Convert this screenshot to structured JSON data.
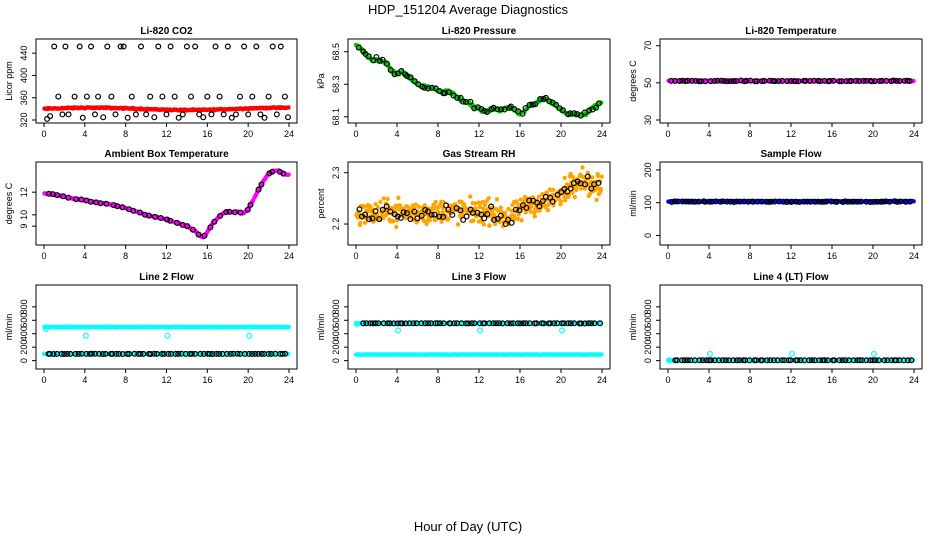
{
  "figure": {
    "title": "HDP_151204  Average Diagnostics",
    "xlabel": "Hour of Day (UTC)"
  },
  "chart_data": [
    {
      "type": "scatter",
      "title": "Li-820 CO2",
      "ylabel": "Licor ppm",
      "xlim": [
        0,
        24
      ],
      "ylim": [
        320,
        460
      ],
      "xticks": [
        0,
        4,
        8,
        12,
        16,
        20,
        24
      ],
      "yticks": [
        320,
        360,
        400,
        440
      ],
      "series": [
        {
          "name": "co2_mean",
          "color": "#ff0000",
          "marker": "dot",
          "x_range": [
            0,
            24
          ],
          "n": 240,
          "y_base": 340,
          "y_amp": 2,
          "noise": 1.5
        },
        {
          "name": "co2_hourly",
          "color": "#000000",
          "marker": "circle",
          "x": [
            0.3,
            0.6,
            1,
            1.4,
            1.8,
            2.1,
            2.4,
            3,
            3.5,
            3.8,
            4.2,
            4.6,
            5,
            5.3,
            5.8,
            6.2,
            6.6,
            7,
            7.5,
            7.8,
            8.2,
            8.6,
            9,
            9.5,
            10,
            10.4,
            10.8,
            11.2,
            11.6,
            12,
            12.4,
            12.8,
            13.2,
            13.6,
            14,
            14.4,
            14.8,
            15.2,
            15.6,
            16,
            16.4,
            16.8,
            17.2,
            17.6,
            18,
            18.4,
            18.8,
            19.2,
            19.6,
            20,
            20.4,
            20.8,
            21.2,
            21.6,
            22,
            22.4,
            22.8,
            23.2,
            23.6,
            23.9
          ],
          "y": [
            322,
            327,
            452,
            362,
            330,
            452,
            330,
            362,
            452,
            324,
            362,
            452,
            330,
            362,
            325,
            452,
            362,
            330,
            452,
            452,
            324,
            362,
            330,
            452,
            330,
            362,
            325,
            452,
            362,
            330,
            452,
            362,
            324,
            330,
            452,
            362,
            452,
            330,
            325,
            362,
            330,
            452,
            362,
            330,
            452,
            324,
            330,
            362,
            452,
            330,
            362,
            452,
            330,
            324,
            362,
            452,
            330,
            452,
            362,
            325
          ]
        }
      ]
    },
    {
      "type": "scatter",
      "title": "Li-820 Pressure",
      "ylabel": "kPa",
      "xlim": [
        0,
        24
      ],
      "ylim": [
        68.08,
        68.56
      ],
      "xticks": [
        0,
        4,
        8,
        12,
        16,
        20,
        24
      ],
      "yticks": [
        68.1,
        68.3,
        68.5
      ],
      "series": [
        {
          "name": "pressure_mean",
          "color": "#00cc00",
          "marker": "dot",
          "x": [
            0,
            0.5,
            1,
            1.5,
            2,
            2.5,
            3,
            3.5,
            4,
            4.5,
            5,
            5.5,
            6,
            6.5,
            7,
            7.5,
            8,
            8.5,
            9,
            9.5,
            10,
            10.5,
            11,
            11.5,
            12,
            12.5,
            13,
            13.5,
            14,
            14.5,
            15,
            15.5,
            16,
            16.5,
            17,
            17.5,
            18,
            18.5,
            19,
            19.5,
            20,
            20.5,
            21,
            21.5,
            22,
            22.5,
            23,
            23.5,
            24
          ],
          "y": [
            68.54,
            68.52,
            68.48,
            68.45,
            68.45,
            68.44,
            68.43,
            68.38,
            68.36,
            68.38,
            68.35,
            68.33,
            68.3,
            68.29,
            68.28,
            68.28,
            68.26,
            68.25,
            68.26,
            68.24,
            68.21,
            68.2,
            68.19,
            68.16,
            68.15,
            68.13,
            68.14,
            68.15,
            68.14,
            68.15,
            68.16,
            68.14,
            68.12,
            68.14,
            68.17,
            68.18,
            68.2,
            68.21,
            68.19,
            68.17,
            68.14,
            68.12,
            68.12,
            68.11,
            68.11,
            68.12,
            68.15,
            68.17,
            68.19
          ],
          "noise": 0.012
        },
        {
          "name": "pressure_hourly",
          "color": "#000000",
          "marker": "circle",
          "follow": 0,
          "n": 70,
          "noise": 0.02
        }
      ]
    },
    {
      "type": "scatter",
      "title": "Li-820 Temperature",
      "ylabel": "degrees C",
      "xlim": [
        0,
        24
      ],
      "ylim": [
        30,
        72
      ],
      "xticks": [
        0,
        4,
        8,
        12,
        16,
        20,
        24
      ],
      "yticks": [
        30,
        50,
        70
      ],
      "series": [
        {
          "name": "temp_mean",
          "color": "#ff00ff",
          "marker": "dot",
          "x_range": [
            0,
            24
          ],
          "n": 240,
          "y_base": 51,
          "y_amp": 0,
          "noise": 0.2
        },
        {
          "name": "temp_hourly",
          "color": "#000000",
          "marker": "circle",
          "x_range": [
            0.2,
            23.9
          ],
          "n": 70,
          "y_base": 51,
          "y_amp": 0,
          "noise": 0.3
        }
      ]
    },
    {
      "type": "scatter",
      "title": "Ambient Box Temperature",
      "ylabel": "degrees C",
      "xlim": [
        0,
        24
      ],
      "ylim": [
        7.6,
        14.4
      ],
      "xticks": [
        0,
        4,
        8,
        12,
        16,
        20,
        24
      ],
      "yticks": [
        9,
        10,
        12
      ],
      "series": [
        {
          "name": "box_mean",
          "color": "#ff00ff",
          "marker": "dot",
          "x": [
            0,
            1,
            2,
            3,
            4,
            5,
            6,
            7,
            8,
            9,
            10,
            11,
            12,
            13,
            14,
            14.8,
            15.2,
            15.6,
            16,
            16.5,
            17,
            17.5,
            18,
            18.5,
            19,
            19.5,
            20,
            20.5,
            21,
            21.5,
            22,
            22.5,
            23,
            23.5,
            24
          ],
          "y": [
            11.9,
            11.8,
            11.6,
            11.4,
            11.3,
            11.1,
            11.0,
            10.8,
            10.6,
            10.3,
            10.0,
            9.8,
            9.6,
            9.3,
            9.0,
            8.6,
            8.2,
            8.0,
            8.5,
            9.2,
            9.7,
            10.1,
            10.3,
            10.2,
            10.3,
            10.1,
            10.5,
            11.3,
            12.2,
            13.0,
            13.6,
            13.9,
            13.9,
            13.6,
            13.5
          ],
          "noise": 0.05
        },
        {
          "name": "box_hourly",
          "color": "#000000",
          "marker": "circle",
          "follow": 0,
          "n": 45,
          "noise": 0.05
        }
      ]
    },
    {
      "type": "scatter",
      "title": "Gas Stream RH",
      "ylabel": "percent",
      "xlim": [
        0,
        24
      ],
      "ylim": [
        2.165,
        2.315
      ],
      "xticks": [
        0,
        4,
        8,
        12,
        16,
        20,
        24
      ],
      "yticks": [
        2.2,
        2.3
      ],
      "series": [
        {
          "name": "rh_mean",
          "color": "#ffa500",
          "marker": "dot",
          "x": [
            0,
            2,
            4,
            6,
            8,
            10,
            12,
            14,
            15,
            16,
            17,
            18,
            19,
            20,
            21,
            22,
            23,
            24
          ],
          "y": [
            2.22,
            2.22,
            2.225,
            2.22,
            2.225,
            2.225,
            2.225,
            2.22,
            2.21,
            2.225,
            2.24,
            2.24,
            2.25,
            2.255,
            2.28,
            2.29,
            2.275,
            2.27
          ],
          "noise": 0.035,
          "n": 420
        },
        {
          "name": "rh_hourly",
          "color": "#000000",
          "marker": "circle",
          "follow": 0,
          "n": 70,
          "noise": 0.025
        }
      ]
    },
    {
      "type": "scatter",
      "title": "Sample Flow",
      "ylabel": "ml/min",
      "xlim": [
        0,
        24
      ],
      "ylim": [
        -20,
        215
      ],
      "xticks": [
        0,
        4,
        8,
        12,
        16,
        20,
        24
      ],
      "yticks": [
        0,
        100,
        200
      ],
      "series": [
        {
          "name": "sample_mean",
          "color": "#0000ff",
          "marker": "dot",
          "x_range": [
            0,
            24
          ],
          "n": 240,
          "y_base": 104,
          "y_amp": 0,
          "noise": 2
        },
        {
          "name": "sample_hourly",
          "color": "#000000",
          "marker": "circle",
          "x_range": [
            0.2,
            23.9
          ],
          "n": 70,
          "y_base": 103,
          "y_amp": 0,
          "noise": 2
        }
      ]
    },
    {
      "type": "scatter",
      "title": "Line 2 Flow",
      "ylabel": "ml/min",
      "xlim": [
        0,
        24
      ],
      "ylim": [
        -80,
        1080
      ],
      "xticks": [
        0,
        4,
        8,
        12,
        16,
        20,
        24
      ],
      "yticks": [
        0,
        200,
        400,
        600,
        800
      ],
      "series": [
        {
          "name": "line2_high",
          "color": "#00ffff",
          "marker": "dot",
          "x_range": [
            0,
            24
          ],
          "n": 300,
          "y_base": 500,
          "y_amp": 0,
          "noise": 8
        },
        {
          "name": "line2_low",
          "color": "#00ffff",
          "marker": "dot",
          "x_range": [
            0,
            24
          ],
          "n": 300,
          "y_base": 100,
          "y_amp": 0,
          "noise": 3
        },
        {
          "name": "line2_hourly",
          "color": "#000000",
          "marker": "circle",
          "x_range": [
            0.2,
            23.9
          ],
          "n": 70,
          "y_base": 100,
          "y_amp": 0,
          "noise": 2
        },
        {
          "name": "line2_outliers",
          "color": "#00ffff",
          "marker": "circle",
          "x": [
            0.2,
            4.1,
            12.1,
            20.1
          ],
          "y": [
            470,
            370,
            370,
            370
          ]
        }
      ]
    },
    {
      "type": "scatter",
      "title": "Line 3 Flow",
      "ylabel": "ml/min",
      "xlim": [
        0,
        24
      ],
      "ylim": [
        -80,
        1080
      ],
      "xticks": [
        0,
        4,
        8,
        12,
        16,
        20,
        24
      ],
      "yticks": [
        0,
        200,
        400,
        600,
        800
      ],
      "series": [
        {
          "name": "line3_high",
          "color": "#00ffff",
          "marker": "dot",
          "x_range": [
            0,
            24
          ],
          "n": 300,
          "y_base": 555,
          "y_amp": 0,
          "noise": 5
        },
        {
          "name": "line3_low",
          "color": "#00ffff",
          "marker": "dot",
          "x_range": [
            0,
            24
          ],
          "n": 300,
          "y_base": 90,
          "y_amp": 0,
          "noise": 3
        },
        {
          "name": "line3_hourly",
          "color": "#000000",
          "marker": "circle",
          "x_range": [
            0.5,
            23.9
          ],
          "n": 70,
          "y_base": 555,
          "y_amp": 0,
          "noise": 3
        },
        {
          "name": "line3_outliers",
          "color": "#00ffff",
          "marker": "circle",
          "x": [
            0.1,
            4.1,
            12.1,
            20.1
          ],
          "y": [
            545,
            450,
            450,
            450
          ]
        }
      ]
    },
    {
      "type": "scatter",
      "title": "Line 4 (LT) Flow",
      "ylabel": "ml/min",
      "xlim": [
        0,
        24
      ],
      "ylim": [
        -80,
        1080
      ],
      "xticks": [
        0,
        4,
        8,
        12,
        16,
        20,
        24
      ],
      "yticks": [
        0,
        200,
        400,
        600,
        800
      ],
      "series": [
        {
          "name": "line4_mean",
          "color": "#00ffff",
          "marker": "dot",
          "x_range": [
            0,
            24
          ],
          "n": 240,
          "y_base": 5,
          "y_amp": 0,
          "noise": 1
        },
        {
          "name": "line4_hourly",
          "color": "#000000",
          "marker": "circle",
          "x_range": [
            0.5,
            23.9
          ],
          "n": 70,
          "y_base": 5,
          "y_amp": 0,
          "noise": 1
        },
        {
          "name": "line4_outliers",
          "color": "#00ffff",
          "marker": "circle",
          "x": [
            0.1,
            4.1,
            12.1,
            20.1
          ],
          "y": [
            5,
            100,
            100,
            100
          ]
        }
      ]
    }
  ]
}
